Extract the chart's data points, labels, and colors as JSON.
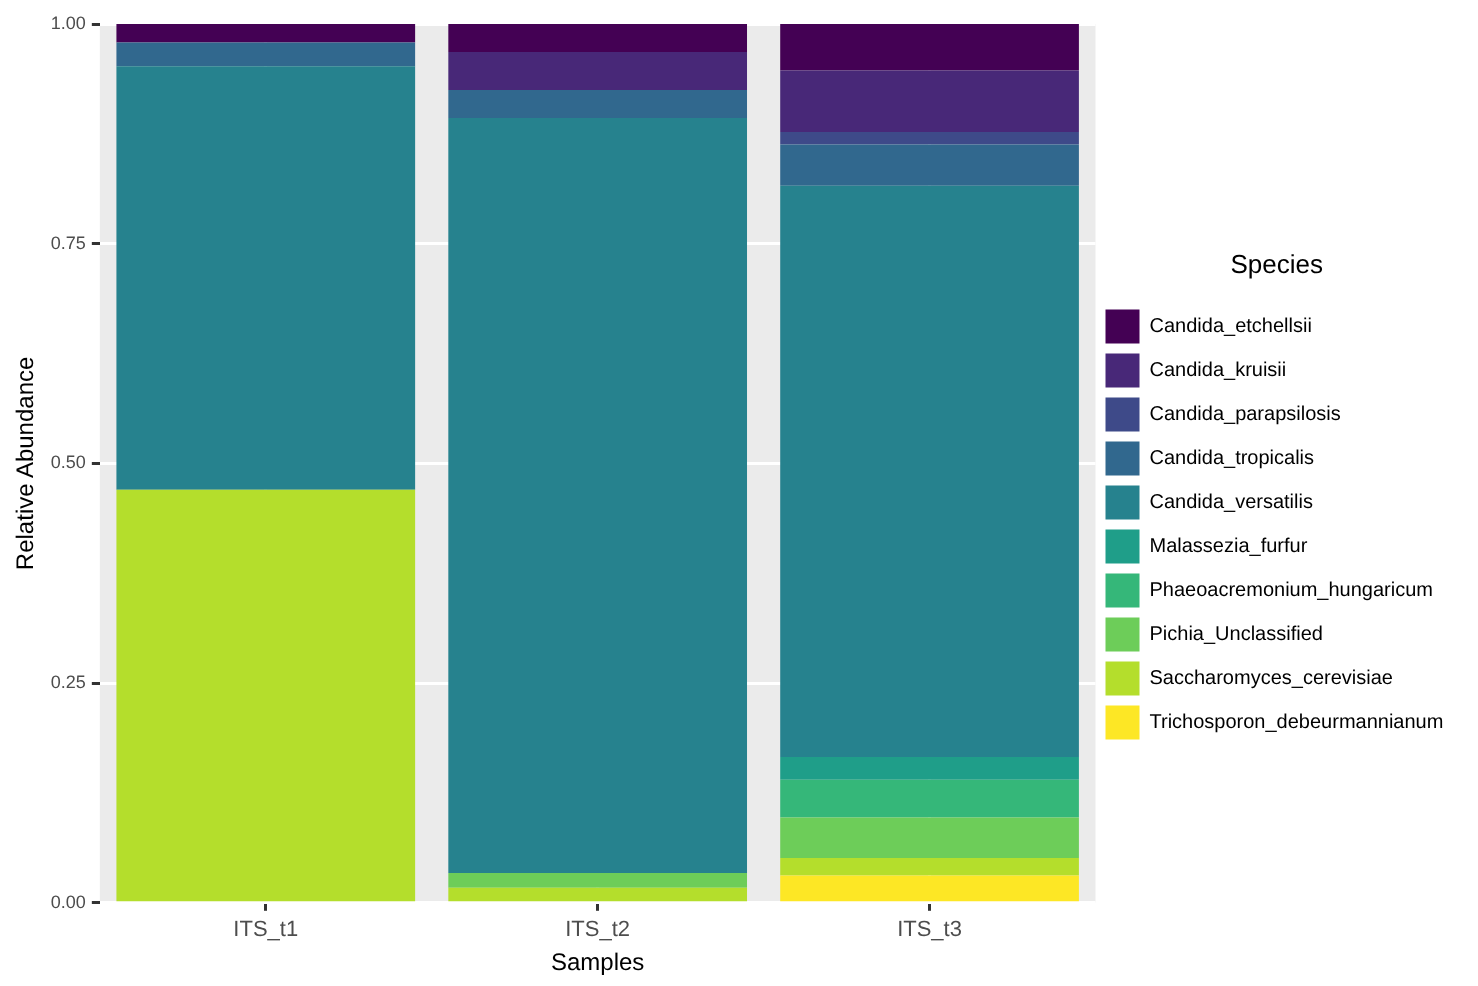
{
  "chart_data": {
    "type": "bar",
    "stacked": true,
    "xlabel": "Samples",
    "ylabel": "Relative Abundance",
    "legend_title": "Species",
    "legend": "right",
    "grid": true,
    "categories": [
      "ITS_t1",
      "ITS_t2",
      "ITS_t3"
    ],
    "ylim": [
      0,
      1
    ],
    "yticks": [
      {
        "value": 0,
        "label": "0.00"
      },
      {
        "value": 0.25,
        "label": "0.25"
      },
      {
        "value": 0.5,
        "label": "0.50"
      },
      {
        "value": 0.75,
        "label": "0.75"
      },
      {
        "value": 1,
        "label": "1.00"
      }
    ],
    "series": [
      {
        "name": "Trichosporon_debeurmannianum",
        "color": "#fde725",
        "values": [
          0,
          0,
          0.031
        ]
      },
      {
        "name": "Saccharomyces_cerevisiae",
        "color": "#b4de2c",
        "values": [
          0.47,
          0.017,
          0.02
        ]
      },
      {
        "name": "Pichia_Unclassified",
        "color": "#6dcd59",
        "values": [
          0,
          0.017,
          0.046
        ]
      },
      {
        "name": "Phaeoacremonium_hungaricum",
        "color": "#35b779",
        "values": [
          0,
          0,
          0.043
        ]
      },
      {
        "name": "Malassezia_furfur",
        "color": "#1f9e89",
        "values": [
          0,
          0,
          0.026
        ]
      },
      {
        "name": "Candida_versatilis",
        "color": "#26828e",
        "values": [
          0.482,
          0.859,
          0.65
        ]
      },
      {
        "name": "Candida_tropicalis",
        "color": "#31688e",
        "values": [
          0.027,
          0.032,
          0.047
        ]
      },
      {
        "name": "Candida_parapsilosis",
        "color": "#3e4a89",
        "values": [
          0,
          0,
          0.014
        ]
      },
      {
        "name": "Candida_kruisii",
        "color": "#482878",
        "values": [
          0,
          0.043,
          0.07
        ]
      },
      {
        "name": "Candida_etchellsii",
        "color": "#440154",
        "values": [
          0.021,
          0.032,
          0.053
        ]
      }
    ]
  }
}
